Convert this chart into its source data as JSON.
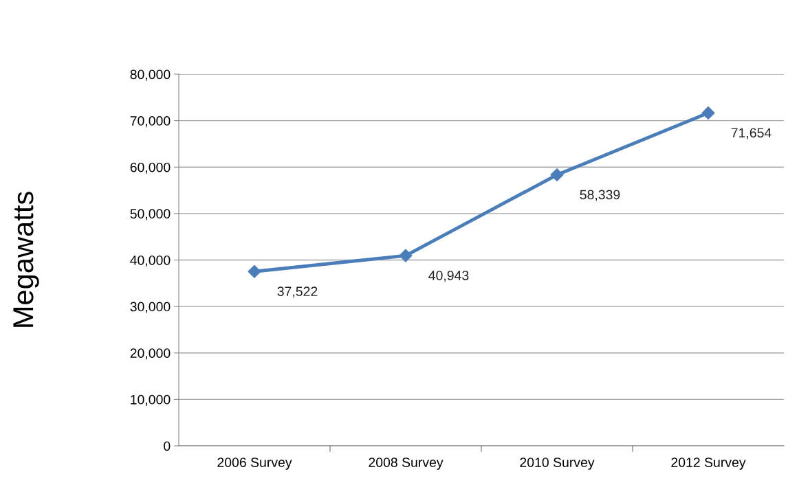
{
  "chart_data": {
    "type": "line",
    "ylabel": "Megawatts",
    "categories": [
      "2006 Survey",
      "2008 Survey",
      "2010 Survey",
      "2012 Survey"
    ],
    "series": [
      {
        "color": "#4a7ebb",
        "values": [
          37522,
          40943,
          58339,
          71654
        ],
        "value_labels": [
          "37,522",
          "40,943",
          "58,339",
          "71,654"
        ]
      }
    ],
    "ylim": [
      0,
      80000
    ],
    "yticks": [
      {
        "value": 0,
        "label": "0"
      },
      {
        "value": 10000,
        "label": "10,000"
      },
      {
        "value": 20000,
        "label": "20,000"
      },
      {
        "value": 30000,
        "label": "30,000"
      },
      {
        "value": 40000,
        "label": "40,000"
      },
      {
        "value": 50000,
        "label": "50,000"
      },
      {
        "value": 60000,
        "label": "60,000"
      },
      {
        "value": 70000,
        "label": "70,000"
      },
      {
        "value": 80000,
        "label": "80,000"
      }
    ],
    "grid": "y",
    "marker": "diamond",
    "line_style": "solid",
    "legend": false
  }
}
